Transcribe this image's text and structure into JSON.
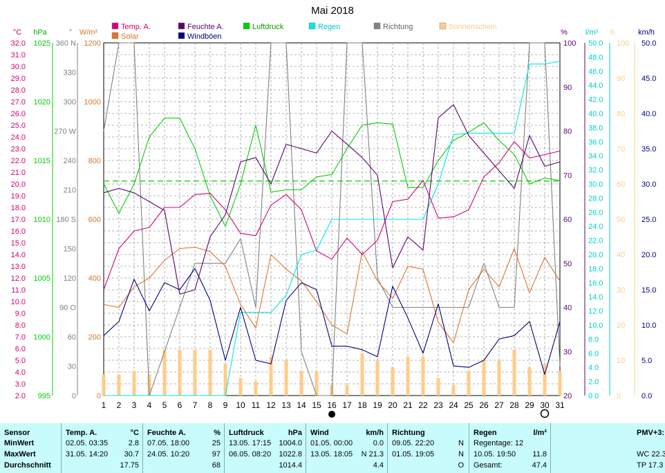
{
  "chart_data": {
    "type": "line",
    "title": "Mai 2018",
    "days": [
      1,
      2,
      3,
      4,
      5,
      6,
      7,
      8,
      9,
      10,
      11,
      12,
      13,
      14,
      15,
      16,
      17,
      18,
      19,
      20,
      21,
      22,
      23,
      24,
      25,
      26,
      27,
      28,
      29,
      30,
      31
    ],
    "series": [
      {
        "name": "Temp. A.",
        "color": "#d4007a",
        "axis": "temp",
        "values": [
          11,
          14.5,
          16,
          16.3,
          18,
          18,
          19.1,
          19.2,
          17.8,
          15.8,
          15.6,
          18.2,
          19.1,
          17.8,
          14.3,
          13.6,
          15.4,
          14,
          15.2,
          18.5,
          18.7,
          20.3,
          17.1,
          17.2,
          17.8,
          20.6,
          21.8,
          23.6,
          22.2,
          22.5,
          22.8
        ]
      },
      {
        "name": "Solar",
        "color": "#e0742a",
        "axis": "solar",
        "values": [
          310,
          300,
          370,
          400,
          460,
          500,
          505,
          490,
          440,
          310,
          230,
          480,
          430,
          390,
          320,
          240,
          210,
          490,
          390,
          330,
          440,
          430,
          250,
          180,
          360,
          430,
          370,
          500,
          350,
          470,
          390
        ]
      },
      {
        "name": "Feuchte A.",
        "color": "#5a0070",
        "axis": "humid",
        "values": [
          66,
          67,
          66,
          64,
          62,
          43,
          44,
          56,
          61,
          73,
          74,
          68,
          77,
          76,
          75,
          80,
          77,
          74,
          70,
          49,
          56,
          53,
          83,
          86,
          79,
          75,
          71,
          67,
          79,
          72,
          73
        ]
      },
      {
        "name": "Windböen",
        "color": "#000080",
        "axis": "wind",
        "values": [
          8.5,
          10.5,
          16.5,
          12,
          16,
          15,
          18,
          13.5,
          5,
          12.5,
          5,
          4.5,
          13.5,
          16,
          15,
          7,
          7,
          6.5,
          5.5,
          15.5,
          11,
          6,
          13,
          4.2,
          4,
          5,
          8,
          8.5,
          10.5,
          3,
          10.5
        ]
      },
      {
        "name": "Luftdruck",
        "color": "#00d000",
        "axis": "pres",
        "values": [
          1013,
          1010.5,
          1013,
          1017,
          1018.6,
          1018.6,
          1016,
          1012,
          1009.4,
          1013,
          1018,
          1012.3,
          1012.5,
          1012.5,
          1013.6,
          1013.8,
          1016,
          1018,
          1018.2,
          1018.1,
          1012.7,
          1012.7,
          1015,
          1016.7,
          1017.4,
          1018.2,
          1016.7,
          1015.5,
          1013,
          1013.5,
          1013.3
        ]
      },
      {
        "name": "Regen",
        "color": "#00e8e8",
        "axis": "rain",
        "values": [
          0,
          0,
          0,
          0,
          0,
          0,
          0,
          0,
          0,
          11.8,
          11.8,
          11.8,
          14.2,
          20,
          20.6,
          25,
          25,
          25,
          25,
          25,
          25,
          25,
          30,
          37,
          37.2,
          37.2,
          37.2,
          37.2,
          47,
          47,
          47.4
        ]
      },
      {
        "name": "Richtung",
        "color": "#808080",
        "axis": "dir",
        "values": [
          270,
          360,
          360,
          0,
          45,
          90,
          135,
          135,
          135,
          160,
          90,
          360,
          360,
          45,
          0,
          0,
          360,
          360,
          120,
          90,
          90,
          90,
          90,
          90,
          90,
          135,
          90,
          90,
          360,
          360,
          30
        ]
      },
      {
        "name": "Sonnenschein",
        "color": "#ffcc88",
        "axis": "sun",
        "type": "bar",
        "values": [
          6,
          6,
          7,
          6,
          13,
          13,
          13,
          13,
          9,
          5,
          4,
          11,
          10,
          7,
          7,
          3,
          3,
          12,
          10,
          8,
          11,
          11,
          5,
          3,
          7,
          10,
          10,
          13,
          8,
          9,
          7
        ]
      }
    ],
    "reference_line": {
      "color": "#00d000",
      "axis": "pres",
      "value": 1013.25
    },
    "axes": {
      "temp": {
        "unit": "°C",
        "min": 2,
        "max": 32,
        "color": "#d4007a"
      },
      "pres": {
        "unit": "hPa",
        "min": 995,
        "max": 1025,
        "color": "#00d000"
      },
      "dir": {
        "unit": "°",
        "min": 0,
        "max": 360,
        "color": "#808080"
      },
      "solar": {
        "unit": "W/m²",
        "min": 0,
        "max": 1200,
        "color": "#e0742a"
      },
      "humid": {
        "unit": "%",
        "min": 20,
        "max": 100,
        "color": "#5a0070"
      },
      "rain": {
        "unit": "l/m²",
        "min": 0,
        "max": 50,
        "color": "#00d0d0"
      },
      "sun": {
        "unit": "h",
        "min": 0,
        "max": 100,
        "color": "#ffcc88"
      },
      "wind": {
        "unit": "km/h",
        "min": 0,
        "max": 50,
        "color": "#000080"
      }
    },
    "temp_ticks": [
      "2.0",
      "3.0",
      "4.0",
      "5.0",
      "6.0",
      "7.0",
      "8.0",
      "9.0",
      "10.0",
      "11.0",
      "12.0",
      "13.0",
      "14.0",
      "15.0",
      "16.0",
      "17.0",
      "18.0",
      "19.0",
      "20.0",
      "21.0",
      "22.0",
      "23.0",
      "24.0",
      "25.0",
      "26.0",
      "27.0",
      "28.0",
      "29.0",
      "30.0",
      "31.0",
      "32.0"
    ],
    "pres_ticks": [
      {
        "v": 995,
        "t": "995"
      },
      {
        "v": 1000,
        "t": "1000"
      },
      {
        "v": 1005,
        "t": "1005"
      },
      {
        "v": 1010,
        "t": "1010"
      },
      {
        "v": 1015,
        "t": "1015"
      },
      {
        "v": 1020,
        "t": "1020"
      },
      {
        "v": 1025,
        "t": "1025"
      }
    ],
    "dir_ticks": [
      {
        "v": 0,
        "t": "0"
      },
      {
        "v": 30,
        "t": "30"
      },
      {
        "v": 60,
        "t": "60"
      },
      {
        "v": 90,
        "t": "90 O"
      },
      {
        "v": 120,
        "t": "120"
      },
      {
        "v": 150,
        "t": "150"
      },
      {
        "v": 180,
        "t": "180 S"
      },
      {
        "v": 210,
        "t": "210"
      },
      {
        "v": 240,
        "t": "240"
      },
      {
        "v": 270,
        "t": "270 W"
      },
      {
        "v": 300,
        "t": "300"
      },
      {
        "v": 330,
        "t": "330"
      },
      {
        "v": 360,
        "t": "360 N"
      }
    ],
    "solar_ticks": [
      {
        "v": 0,
        "t": "0"
      },
      {
        "v": 200,
        "t": "200"
      },
      {
        "v": 400,
        "t": "400"
      },
      {
        "v": 600,
        "t": "600"
      },
      {
        "v": 800,
        "t": "800"
      },
      {
        "v": 1000,
        "t": "1000"
      },
      {
        "v": 1200,
        "t": "1200"
      }
    ],
    "humid_ticks": [
      {
        "v": 20,
        "t": "20"
      },
      {
        "v": 30,
        "t": "30"
      },
      {
        "v": 40,
        "t": "40"
      },
      {
        "v": 50,
        "t": "50"
      },
      {
        "v": 60,
        "t": "60"
      },
      {
        "v": 70,
        "t": "70"
      },
      {
        "v": 80,
        "t": "80"
      },
      {
        "v": 90,
        "t": "90"
      },
      {
        "v": 100,
        "t": "100"
      }
    ],
    "rain_ticks": [
      "0.0",
      "2.0",
      "4.0",
      "6.0",
      "8.0",
      "10.0",
      "12.0",
      "14.0",
      "16.0",
      "18.0",
      "20.0",
      "22.0",
      "24.0",
      "26.0",
      "28.0",
      "30.0",
      "32.0",
      "34.0",
      "36.0",
      "38.0",
      "40.0",
      "42.0",
      "44.0",
      "46.0",
      "48.0",
      "50.0"
    ],
    "sun_ticks": [
      {
        "v": 0,
        "t": "0"
      },
      {
        "v": 10,
        "t": "10"
      },
      {
        "v": 20,
        "t": "20"
      },
      {
        "v": 30,
        "t": "30"
      },
      {
        "v": 40,
        "t": "40"
      },
      {
        "v": 50,
        "t": "50"
      },
      {
        "v": 60,
        "t": "60"
      },
      {
        "v": 70,
        "t": "70"
      },
      {
        "v": 80,
        "t": "80"
      },
      {
        "v": 90,
        "t": "90"
      },
      {
        "v": 100,
        "t": "100"
      }
    ],
    "wind_ticks": [
      {
        "v": 0,
        "t": "0.0"
      },
      {
        "v": 5,
        "t": "5.0"
      },
      {
        "v": 10,
        "t": "10.0"
      },
      {
        "v": 15,
        "t": "15.0"
      },
      {
        "v": 20,
        "t": "20.0"
      },
      {
        "v": 25,
        "t": "25.0"
      },
      {
        "v": 30,
        "t": "30.0"
      },
      {
        "v": 35,
        "t": "35.0"
      },
      {
        "v": 40,
        "t": "40.0"
      },
      {
        "v": 45,
        "t": "45.0"
      },
      {
        "v": 50,
        "t": "50.0"
      }
    ],
    "legend": [
      {
        "label": "Temp. A.",
        "color": "#d4007a",
        "text_color": "#d4007a"
      },
      {
        "label": "Feuchte A.",
        "color": "#5a0070",
        "text_color": "#5a0070"
      },
      {
        "label": "Luftdruck",
        "color": "#00d000",
        "text_color": "#00a000"
      },
      {
        "label": "Regen",
        "color": "#00e8e8",
        "text_color": "#00c8c8"
      },
      {
        "label": "Richtung",
        "color": "#808080",
        "text_color": "#606060"
      },
      {
        "label": "Sonnenschein",
        "color": "#ffcc88",
        "text_color": "#ffcc88"
      },
      {
        "label": "Solar",
        "color": "#e0742a",
        "text_color": "#e0742a"
      },
      {
        "label": "Windböen",
        "color": "#000080",
        "text_color": "#000080"
      }
    ],
    "moon_markers": [
      {
        "day": 16,
        "phase": "new"
      },
      {
        "day": 30,
        "phase": "full"
      }
    ]
  },
  "stats": {
    "sensor": {
      "header": "Sensor",
      "rows": [
        "MinWert",
        "MaxWert",
        "Durchschnitt"
      ]
    },
    "temp": {
      "header": "Temp. A.",
      "unit": "°C",
      "rows": [
        {
          "time": "02.05.  03:35",
          "value": "2.8"
        },
        {
          "time": "31.05.  14:20",
          "value": "30.7"
        },
        {
          "time": "",
          "value": "17.75"
        }
      ]
    },
    "humid": {
      "header": "Feuchte A.",
      "unit": "%",
      "rows": [
        {
          "time": "07.05.  18:00",
          "value": "25"
        },
        {
          "time": "24.05.  10:20",
          "value": "97"
        },
        {
          "time": "",
          "value": "68"
        }
      ]
    },
    "pres": {
      "header": "Luftdruck",
      "unit": "hPa",
      "rows": [
        {
          "time": "13.05.  17:15",
          "value": "1004.0"
        },
        {
          "time": "06.05.  08:20",
          "value": "1022.8"
        },
        {
          "time": "",
          "value": "1014.4"
        }
      ]
    },
    "wind": {
      "header": "Wind",
      "unit": "km/h",
      "rows": [
        {
          "time": "01.05.  00:00",
          "value": "0.0"
        },
        {
          "time": "13.05.  18:05",
          "value": "N 21.3"
        },
        {
          "time": "",
          "value": "4.4"
        }
      ]
    },
    "dir": {
      "header": "Richtung",
      "unit": "",
      "rows": [
        {
          "time": "09.05.  22:20",
          "value": "N"
        },
        {
          "time": "01.05.  19:05",
          "value": "N"
        },
        {
          "time": "",
          "value": "O"
        }
      ]
    },
    "rain": {
      "header": "Regen",
      "unit": "l/m²",
      "rows": [
        {
          "time": "Regentage: 12",
          "value": ""
        },
        {
          "time": "10.05.  19:50",
          "value": "11.8"
        },
        {
          "time": "Gesamt:",
          "value": "47.4"
        }
      ]
    },
    "pmv": {
      "header": "PMV+3:",
      "rows": [
        "",
        "WC 22.3",
        "TP 17.3"
      ]
    }
  }
}
